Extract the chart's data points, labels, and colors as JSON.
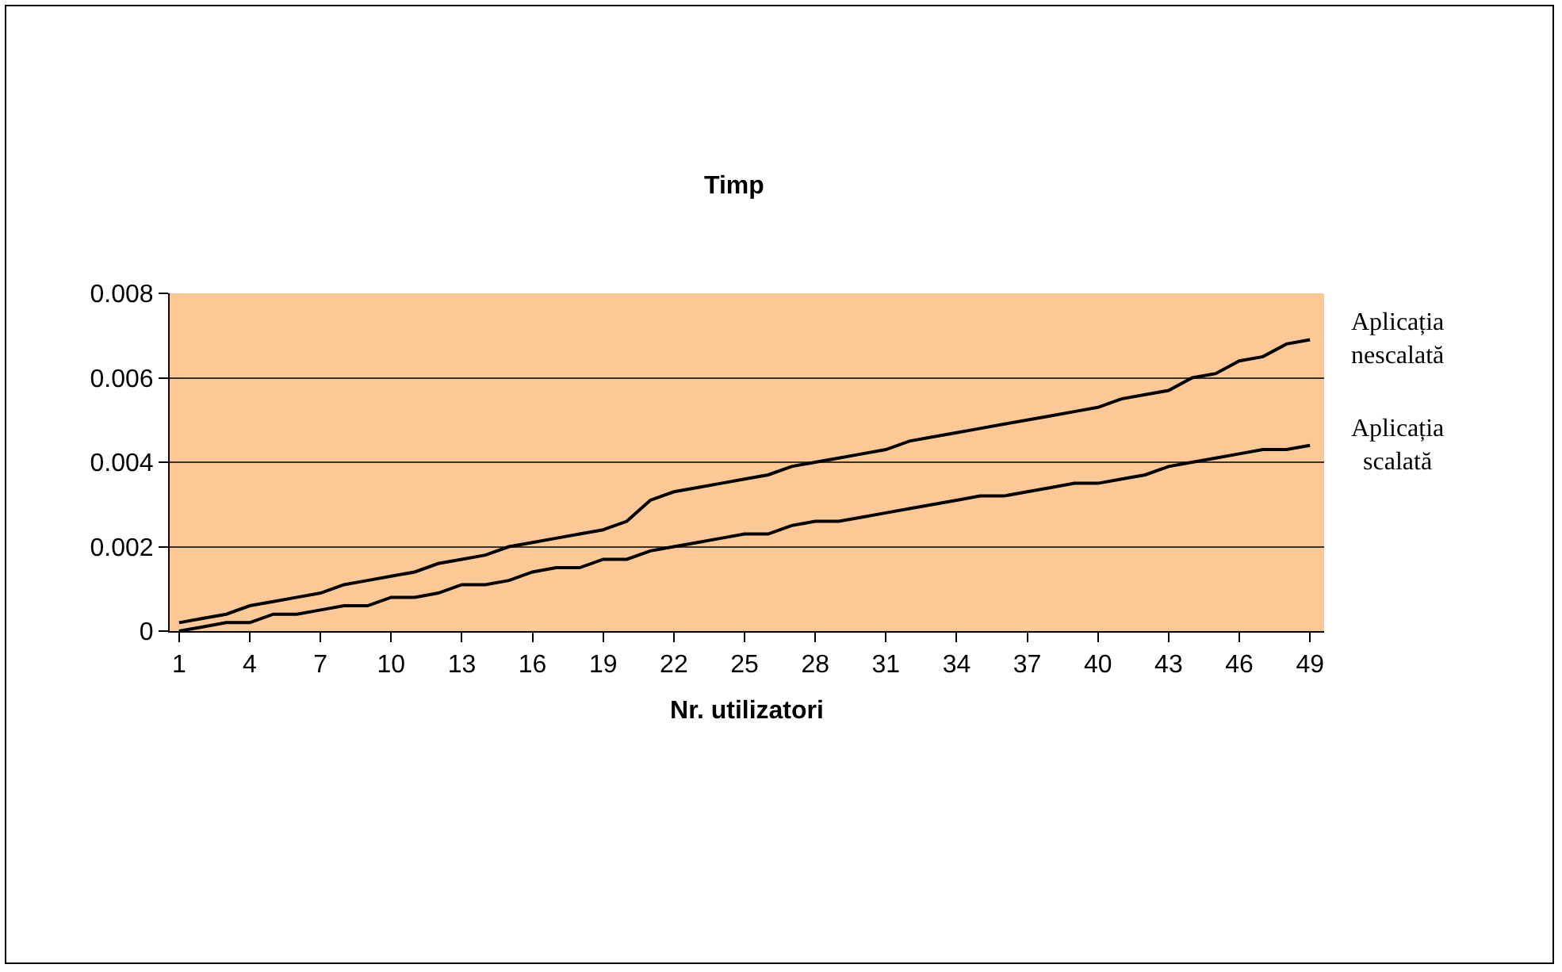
{
  "chart_data": {
    "type": "line",
    "title": "Timp",
    "xlabel": "Nr. utilizatori",
    "x": [
      1,
      2,
      3,
      4,
      5,
      6,
      7,
      8,
      9,
      10,
      11,
      12,
      13,
      14,
      15,
      16,
      17,
      18,
      19,
      20,
      21,
      22,
      23,
      24,
      25,
      26,
      27,
      28,
      29,
      30,
      31,
      32,
      33,
      34,
      35,
      36,
      37,
      38,
      39,
      40,
      41,
      42,
      43,
      44,
      45,
      46,
      47,
      48,
      49
    ],
    "series": [
      {
        "name": "Aplicația nescalată",
        "color": "#000000",
        "values": [
          0.0002,
          0.0003,
          0.0004,
          0.0006,
          0.0007,
          0.0008,
          0.0009,
          0.0011,
          0.0012,
          0.0013,
          0.0014,
          0.0016,
          0.0017,
          0.0018,
          0.002,
          0.0021,
          0.0022,
          0.0023,
          0.0024,
          0.0026,
          0.0031,
          0.0033,
          0.0034,
          0.0035,
          0.0036,
          0.0037,
          0.0039,
          0.004,
          0.0041,
          0.0042,
          0.0043,
          0.0045,
          0.0046,
          0.0047,
          0.0048,
          0.0049,
          0.005,
          0.0051,
          0.0052,
          0.0053,
          0.0055,
          0.0056,
          0.0057,
          0.006,
          0.0061,
          0.0064,
          0.0065,
          0.0068,
          0.0069
        ]
      },
      {
        "name": "Aplicația scalată",
        "color": "#000000",
        "values": [
          0,
          0.0001,
          0.0002,
          0.0002,
          0.0004,
          0.0004,
          0.0005,
          0.0006,
          0.0006,
          0.0008,
          0.0008,
          0.0009,
          0.0011,
          0.0011,
          0.0012,
          0.0014,
          0.0015,
          0.0015,
          0.0017,
          0.0017,
          0.0019,
          0.002,
          0.0021,
          0.0022,
          0.0023,
          0.0023,
          0.0025,
          0.0026,
          0.0026,
          0.0027,
          0.0028,
          0.0029,
          0.003,
          0.0031,
          0.0032,
          0.0032,
          0.0033,
          0.0034,
          0.0035,
          0.0035,
          0.0036,
          0.0037,
          0.0039,
          0.004,
          0.0041,
          0.0042,
          0.0043,
          0.0043,
          0.0044
        ]
      }
    ],
    "xlim": [
      0.6,
      49.6
    ],
    "xticks": [
      1,
      4,
      7,
      10,
      13,
      16,
      19,
      22,
      25,
      28,
      31,
      34,
      37,
      40,
      43,
      46,
      49
    ],
    "ylim": [
      0,
      0.008
    ],
    "yticks": [
      0,
      0.002,
      0.004,
      0.006,
      0.008
    ],
    "grid": "y",
    "legend": false,
    "marker": "none",
    "line_style": "solid"
  }
}
